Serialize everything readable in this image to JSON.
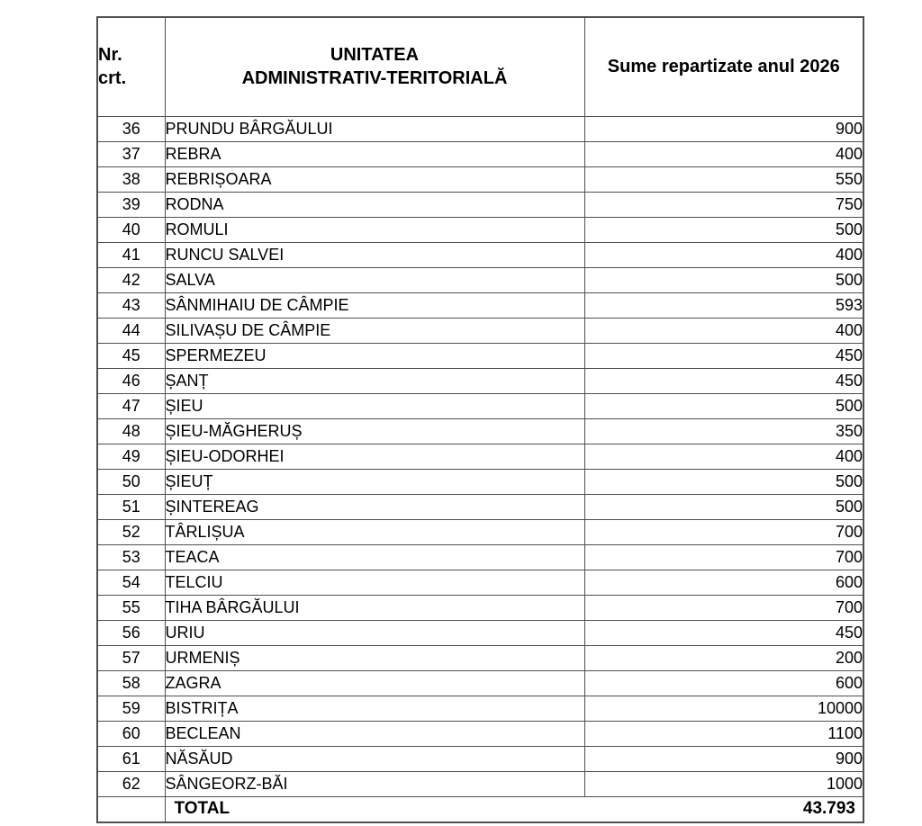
{
  "colors": {
    "background": "#ffffff",
    "text": "#000000",
    "border": "#4f4f4f"
  },
  "header": {
    "nr_line1": "Nr.",
    "nr_line2": "crt.",
    "uat_line1": "UNITATEA",
    "uat_line2": "ADMINISTRATIV-TERITORIALĂ",
    "sume": "Sume repartizate anul 2026"
  },
  "rows": [
    {
      "nr": "36",
      "name": "PRUNDU BÂRGĂULUI",
      "value": "900"
    },
    {
      "nr": "37",
      "name": "REBRA",
      "value": "400"
    },
    {
      "nr": "38",
      "name": "REBRIȘOARA",
      "value": "550"
    },
    {
      "nr": "39",
      "name": "RODNA",
      "value": "750"
    },
    {
      "nr": "40",
      "name": "ROMULI",
      "value": "500"
    },
    {
      "nr": "41",
      "name": "RUNCU SALVEI",
      "value": "400"
    },
    {
      "nr": "42",
      "name": "SALVA",
      "value": "500"
    },
    {
      "nr": "43",
      "name": "SÂNMIHAIU DE CÂMPIE",
      "value": "593"
    },
    {
      "nr": "44",
      "name": "SILIVAȘU DE CÂMPIE",
      "value": "400"
    },
    {
      "nr": "45",
      "name": "SPERMEZEU",
      "value": "450"
    },
    {
      "nr": "46",
      "name": "ȘANȚ",
      "value": "450"
    },
    {
      "nr": "47",
      "name": "ȘIEU",
      "value": "500"
    },
    {
      "nr": "48",
      "name": "ȘIEU-MĂGHERUȘ",
      "value": "350"
    },
    {
      "nr": "49",
      "name": "ȘIEU-ODORHEI",
      "value": "400"
    },
    {
      "nr": "50",
      "name": "ȘIEUȚ",
      "value": "500"
    },
    {
      "nr": "51",
      "name": "ȘINTEREAG",
      "value": "500"
    },
    {
      "nr": "52",
      "name": "TÂRLIȘUA",
      "value": "700"
    },
    {
      "nr": "53",
      "name": "TEACA",
      "value": "700"
    },
    {
      "nr": "54",
      "name": "TELCIU",
      "value": "600"
    },
    {
      "nr": "55",
      "name": "TIHA BÂRGĂULUI",
      "value": "700"
    },
    {
      "nr": "56",
      "name": "URIU",
      "value": "450"
    },
    {
      "nr": "57",
      "name": "URMENIȘ",
      "value": "200"
    },
    {
      "nr": "58",
      "name": "ZAGRA",
      "value": "600"
    },
    {
      "nr": "59",
      "name": "BISTRIȚA",
      "value": "10000"
    },
    {
      "nr": "60",
      "name": "BECLEAN",
      "value": "1100"
    },
    {
      "nr": "61",
      "name": "NĂSĂUD",
      "value": "900"
    },
    {
      "nr": "62",
      "name": "SÂNGEORZ-BĂI",
      "value": "1000"
    }
  ],
  "total": {
    "label": "TOTAL",
    "value": "43.793"
  }
}
